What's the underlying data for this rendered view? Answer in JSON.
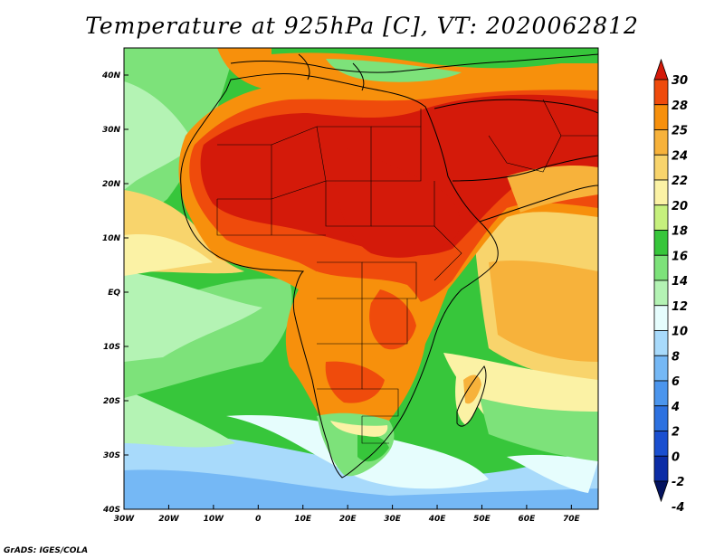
{
  "title": "Temperature at 925hPa [C], VT: 2020062812",
  "credit": "GrADS: IGES/COLA",
  "map": {
    "lon_range": [
      -30,
      76
    ],
    "lat_range": [
      -40,
      45
    ],
    "lon_ticks": [
      {
        "value": -30,
        "label": "30W"
      },
      {
        "value": -20,
        "label": "20W"
      },
      {
        "value": -10,
        "label": "10W"
      },
      {
        "value": 0,
        "label": "0"
      },
      {
        "value": 10,
        "label": "10E"
      },
      {
        "value": 20,
        "label": "20E"
      },
      {
        "value": 30,
        "label": "30E"
      },
      {
        "value": 40,
        "label": "40E"
      },
      {
        "value": 50,
        "label": "50E"
      },
      {
        "value": 60,
        "label": "60E"
      },
      {
        "value": 70,
        "label": "70E"
      }
    ],
    "lat_ticks": [
      {
        "value": 40,
        "label": "40N"
      },
      {
        "value": 30,
        "label": "30N"
      },
      {
        "value": 20,
        "label": "20N"
      },
      {
        "value": 10,
        "label": "10N"
      },
      {
        "value": 0,
        "label": "EQ"
      },
      {
        "value": -10,
        "label": "10S"
      },
      {
        "value": -20,
        "label": "20S"
      },
      {
        "value": -30,
        "label": "30S"
      },
      {
        "value": -40,
        "label": "40S"
      }
    ]
  },
  "colorbar": {
    "labels": [
      "30",
      "28",
      "25",
      "24",
      "22",
      "20",
      "18",
      "16",
      "14",
      "12",
      "10",
      "8",
      "6",
      "4",
      "2",
      "0",
      "-2",
      "-4"
    ],
    "colors": [
      "#d41a0a",
      "#ef4b0c",
      "#f7900c",
      "#f7b23b",
      "#f8d46c",
      "#fbf2a5",
      "#c6f07d",
      "#37c63b",
      "#7de27a",
      "#b4f3b4",
      "#e6fdfd",
      "#a8dafb",
      "#75b8f5",
      "#4b95ed",
      "#2d71e0",
      "#1a4fd0",
      "#0c2da6",
      "#04135f"
    ]
  }
}
